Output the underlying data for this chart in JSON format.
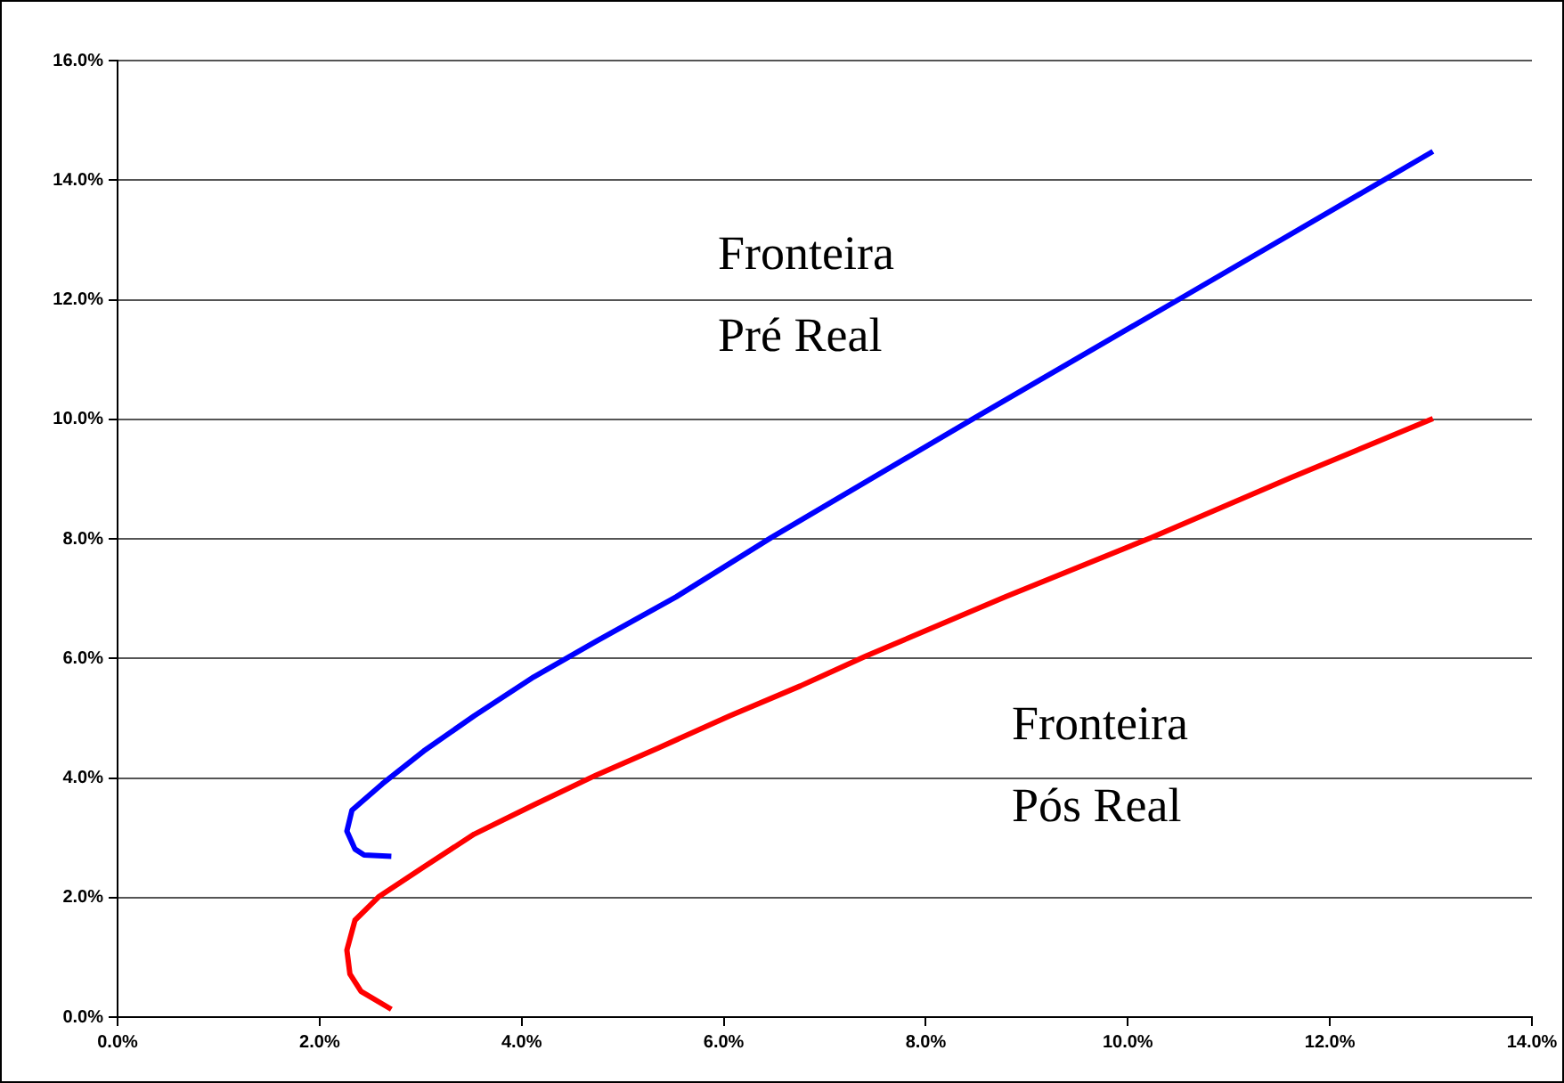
{
  "chart_data": {
    "type": "line",
    "xlim": [
      0,
      14
    ],
    "ylim": [
      0,
      16
    ],
    "xticks": [
      {
        "value": 0,
        "label": "0.0%"
      },
      {
        "value": 2,
        "label": "2.0%"
      },
      {
        "value": 4,
        "label": "4.0%"
      },
      {
        "value": 6,
        "label": "6.0%"
      },
      {
        "value": 8,
        "label": "8.0%"
      },
      {
        "value": 10,
        "label": "10.0%"
      },
      {
        "value": 12,
        "label": "12.0%"
      },
      {
        "value": 14,
        "label": "14.0%"
      }
    ],
    "yticks": [
      {
        "value": 0,
        "label": "0.0%"
      },
      {
        "value": 2,
        "label": "2.0%"
      },
      {
        "value": 4,
        "label": "4.0%"
      },
      {
        "value": 6,
        "label": "6.0%"
      },
      {
        "value": 8,
        "label": "8.0%"
      },
      {
        "value": 10,
        "label": "10.0%"
      },
      {
        "value": 12,
        "label": "12.0%"
      },
      {
        "value": 14,
        "label": "14.0%"
      },
      {
        "value": 16,
        "label": "16.0%"
      }
    ],
    "grid": "y",
    "legend": false,
    "marker": "none",
    "line_style": "solid",
    "series": [
      {
        "name": "Fronteira Pré Real",
        "color": "#0000ff",
        "x": [
          2.71,
          2.44,
          2.35,
          2.27,
          2.32,
          2.62,
          3.03,
          3.53,
          4.12,
          4.74,
          5.53,
          6.47,
          8.47,
          10.5,
          13.02
        ],
        "values": [
          2.69,
          2.71,
          2.81,
          3.11,
          3.46,
          3.9,
          4.45,
          5.04,
          5.69,
          6.29,
          7.03,
          8.02,
          10.01,
          12.0,
          14.48
        ]
      },
      {
        "name": "Fronteira Pós Real",
        "color": "#ff0000",
        "x": [
          2.71,
          2.41,
          2.3,
          2.27,
          2.35,
          2.59,
          3.03,
          3.53,
          4.12,
          4.74,
          5.35,
          6.06,
          6.76,
          7.41,
          8.79,
          10.23,
          11.61,
          13.02
        ],
        "values": [
          0.13,
          0.43,
          0.72,
          1.12,
          1.62,
          2.02,
          2.51,
          3.06,
          3.55,
          4.05,
          4.5,
          5.04,
          5.54,
          6.04,
          7.03,
          8.02,
          9.02,
          10.01
        ]
      }
    ]
  }
}
